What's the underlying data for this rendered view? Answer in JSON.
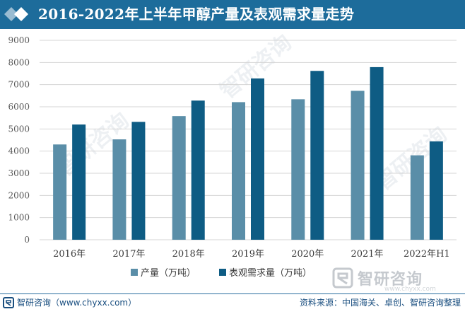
{
  "header": {
    "title": "2016-2022年上半年甲醇产量及表观需求量走势"
  },
  "chart_data": {
    "type": "bar",
    "categories": [
      "2016年",
      "2017年",
      "2018年",
      "2019年",
      "2020年",
      "2021年",
      "2022年H1"
    ],
    "series": [
      {
        "name": "产量（万吨）",
        "color": "#5a8ea8",
        "values": [
          4300,
          4530,
          5580,
          6210,
          6340,
          6720,
          3810
        ]
      },
      {
        "name": "表观需求量（万吨）",
        "color": "#0e5c84",
        "values": [
          5200,
          5320,
          6280,
          7280,
          7620,
          7790,
          4440
        ]
      }
    ],
    "yticks": [
      0,
      1000,
      2000,
      3000,
      4000,
      5000,
      6000,
      7000,
      8000,
      9000
    ],
    "ylim": [
      0,
      9000
    ],
    "grid": true,
    "legend_position": "bottom"
  },
  "watermark": {
    "brand": "智研咨询",
    "url": "www.chyxx.com"
  },
  "footer": {
    "left_text": "智研咨询（www.chyxx.com）",
    "right_text": "资料来源：中国海关、卓创、智研咨询整理"
  },
  "colors": {
    "title_bar": "#1d6c9b",
    "grid": "#d4d4d4",
    "axis_text": "#595959",
    "footer_text": "#1a4f80"
  }
}
